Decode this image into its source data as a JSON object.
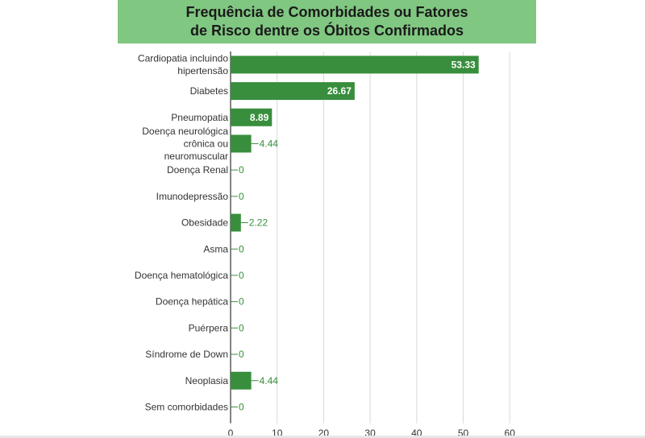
{
  "title": {
    "line1": "Frequência de Comorbidades ou Fatores",
    "line2": "de Risco dentre os Óbitos Confirmados"
  },
  "colors": {
    "banner": "#80c781",
    "bar": "#388e3c",
    "outside_label": "#388e3c",
    "inside_label": "#ffffff",
    "grid": "#d9d9d9",
    "axis": "#333333",
    "text": "#333333"
  },
  "chart_data": {
    "type": "bar",
    "orientation": "horizontal",
    "title": "Frequência de Comorbidades ou Fatores de Risco dentre os Óbitos Confirmados",
    "categories": [
      [
        "Cardiopatia incluindo",
        "hipertensão"
      ],
      [
        "Diabetes"
      ],
      [
        "Pneumopatia"
      ],
      [
        "Doença neurológica",
        "crônica ou",
        "neuromuscular"
      ],
      [
        "Doença Renal"
      ],
      [
        "Imunodepressão"
      ],
      [
        "Obesidade"
      ],
      [
        "Asma"
      ],
      [
        "Doença hematológica"
      ],
      [
        "Doença hepática"
      ],
      [
        "Puérpera"
      ],
      [
        "Síndrome de Down"
      ],
      [
        "Neoplasia"
      ],
      [
        "Sem comorbidades"
      ]
    ],
    "values": [
      53.33,
      26.67,
      8.89,
      4.44,
      0,
      0,
      2.22,
      0,
      0,
      0,
      0,
      0,
      4.44,
      0
    ],
    "value_labels": [
      "53.33",
      "26.67",
      "8.89",
      "4.44",
      "0",
      "0",
      "2.22",
      "0",
      "0",
      "0",
      "0",
      "0",
      "4.44",
      "0"
    ],
    "xlim": [
      0,
      60
    ],
    "xticks": [
      0,
      10,
      20,
      30,
      40,
      50,
      60
    ],
    "xlabel": "",
    "ylabel": "",
    "grid": true
  }
}
